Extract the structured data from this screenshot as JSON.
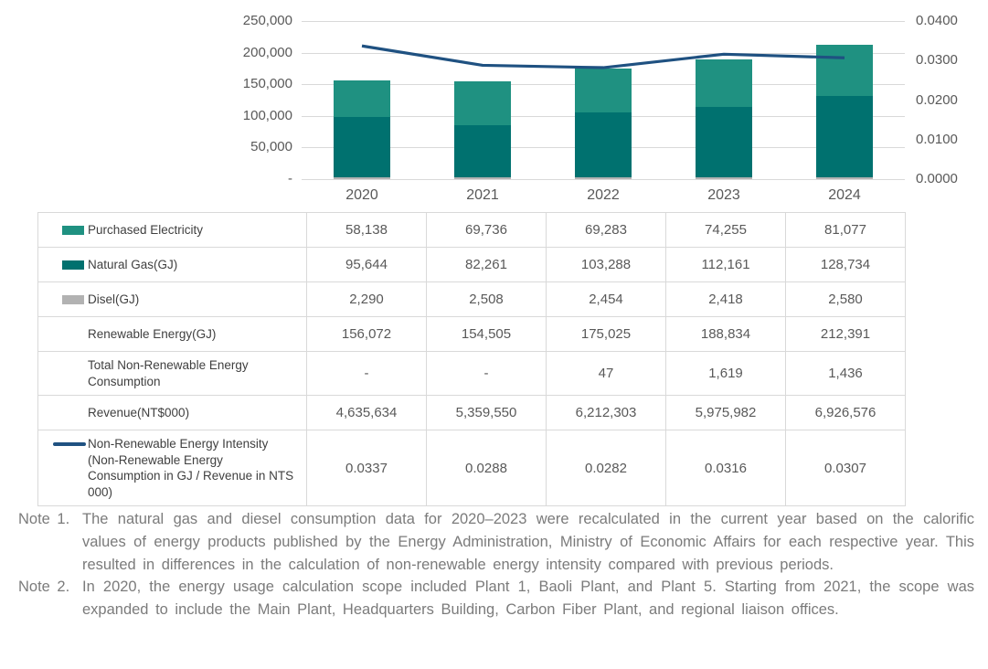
{
  "chart_data": {
    "type": "bar",
    "subtype": "stacked-bars-with-secondary-axis-line",
    "categories": [
      "2020",
      "2021",
      "2022",
      "2023",
      "2024"
    ],
    "series": [
      {
        "name": "Purchased Electricity",
        "type": "bar",
        "stack_index": 2,
        "color": "#1f9181",
        "values": [
          58138,
          69736,
          69283,
          74255,
          81077
        ]
      },
      {
        "name": "Natural Gas(GJ)",
        "type": "bar",
        "stack_index": 1,
        "color": "#00716f",
        "values": [
          95644,
          82261,
          103288,
          112161,
          128734
        ]
      },
      {
        "name": "Disel(GJ)",
        "type": "bar",
        "stack_index": 0,
        "color": "#b2b2b2",
        "values": [
          2290,
          2508,
          2454,
          2418,
          2580
        ]
      },
      {
        "name": "Non-Renewable Energy Intensity",
        "type": "line",
        "axis": "right",
        "color": "#1f5181",
        "values": [
          0.0337,
          0.0288,
          0.0282,
          0.0316,
          0.0307
        ]
      }
    ],
    "left_axis": {
      "min": 0,
      "max": 250000,
      "tick_labels": [
        "250,000",
        "200,000",
        "150,000",
        "100,000",
        "50,000",
        "-"
      ]
    },
    "right_axis": {
      "min": 0,
      "max": 0.04,
      "tick_labels": [
        "0.0400",
        "0.0300",
        "0.0200",
        "0.0100",
        "0.0000"
      ]
    },
    "grid": true,
    "legend_position": "table-below-chart"
  },
  "colors": {
    "purchased_electricity": "#1f9181",
    "natural_gas": "#00716f",
    "diesel": "#b2b2b2",
    "intensity_line": "#1f5181",
    "gridline": "#d9d9d9",
    "axis_text": "#595959",
    "note_text": "#7b7b7b"
  },
  "table": {
    "rows": [
      {
        "label": "Purchased Electricity",
        "swatch": "bar",
        "swatch_color": "#1f9181",
        "values": [
          "58,138",
          "69,736",
          "69,283",
          "74,255",
          "81,077"
        ]
      },
      {
        "label": "Natural Gas(GJ)",
        "swatch": "bar",
        "swatch_color": "#00716f",
        "values": [
          "95,644",
          "82,261",
          "103,288",
          "112,161",
          "128,734"
        ]
      },
      {
        "label": "Disel(GJ)",
        "swatch": "bar",
        "swatch_color": "#b2b2b2",
        "values": [
          "2,290",
          "2,508",
          "2,454",
          "2,418",
          "2,580"
        ]
      },
      {
        "label": "Renewable Energy(GJ)",
        "swatch": "none",
        "swatch_color": "",
        "values": [
          "156,072",
          "154,505",
          "175,025",
          "188,834",
          "212,391"
        ]
      },
      {
        "label": "Total Non-Renewable Energy Consumption",
        "swatch": "none",
        "swatch_color": "",
        "values": [
          "-",
          "-",
          "47",
          "1,619",
          "1,436"
        ]
      },
      {
        "label": "Revenue(NT$000)",
        "swatch": "none",
        "swatch_color": "",
        "values": [
          "4,635,634",
          "5,359,550",
          "6,212,303",
          "5,975,982",
          "6,926,576"
        ]
      },
      {
        "label": "Non-Renewable Energy Intensity (Non-Renewable Energy Consumption in GJ / Revenue in NTS 000)",
        "swatch": "line",
        "swatch_color": "#1f5181",
        "values": [
          "0.0337",
          "0.0288",
          "0.0282",
          "0.0316",
          "0.0307"
        ]
      }
    ]
  },
  "notes": [
    {
      "label": "Note 1.",
      "text": "The natural gas and diesel consumption data for 2020–2023 were recalculated in the current year based on the calorific values of energy products published by the Energy Administration, Ministry of Economic Affairs for each respective year. This resulted in differences in the calculation of non-renewable energy intensity compared with previous periods."
    },
    {
      "label": "Note 2.",
      "text": "In 2020, the energy usage calculation scope included Plant 1, Baoli Plant, and Plant 5. Starting from 2021, the scope was expanded to include the Main Plant, Headquarters Building, Carbon Fiber Plant, and regional liaison offices."
    }
  ]
}
